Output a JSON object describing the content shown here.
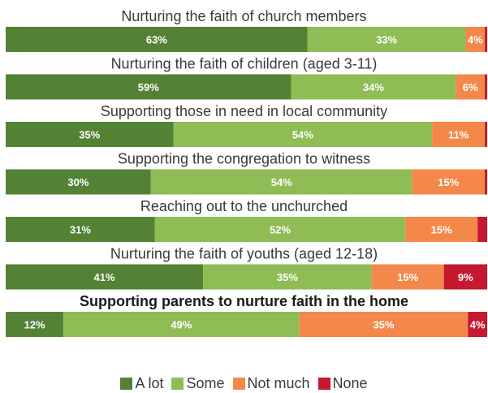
{
  "chart_data": {
    "type": "bar",
    "orientation": "horizontal",
    "stacked": true,
    "percent_labels": true,
    "legend": "bottom",
    "emphasized_category": "Supporting parents to nurture faith in the home",
    "categories": [
      "Nurturing the faith of church members",
      "Nurturing the faith of children (aged 3-11)",
      "Supporting those in need in local community",
      "Supporting the congregation to witness",
      "Reaching out to the unchurched",
      "Nurturing the faith of youths (aged 12-18)",
      "Supporting parents to nurture faith in the home"
    ],
    "series": [
      {
        "name": "A lot",
        "color": "#548235",
        "values": [
          63,
          59,
          35,
          30,
          31,
          41,
          12
        ]
      },
      {
        "name": "Some",
        "color": "#8fbc55",
        "values": [
          33,
          34,
          54,
          54,
          52,
          35,
          49
        ]
      },
      {
        "name": "Not much",
        "color": "#f4884a",
        "values": [
          4,
          6,
          11,
          15,
          15,
          15,
          35
        ]
      },
      {
        "name": "None",
        "color": "#c4192f",
        "values": [
          0.5,
          0.5,
          0.5,
          0.5,
          2,
          9,
          4
        ]
      }
    ],
    "value_labels": [
      [
        "63%",
        "33%",
        "4%",
        ""
      ],
      [
        "59%",
        "34%",
        "6%",
        ""
      ],
      [
        "35%",
        "54%",
        "11%",
        ""
      ],
      [
        "30%",
        "54%",
        "15%",
        ""
      ],
      [
        "31%",
        "52%",
        "15%",
        ""
      ],
      [
        "41%",
        "35%",
        "15%",
        "9%"
      ],
      [
        "12%",
        "49%",
        "35%",
        "4%"
      ]
    ]
  }
}
